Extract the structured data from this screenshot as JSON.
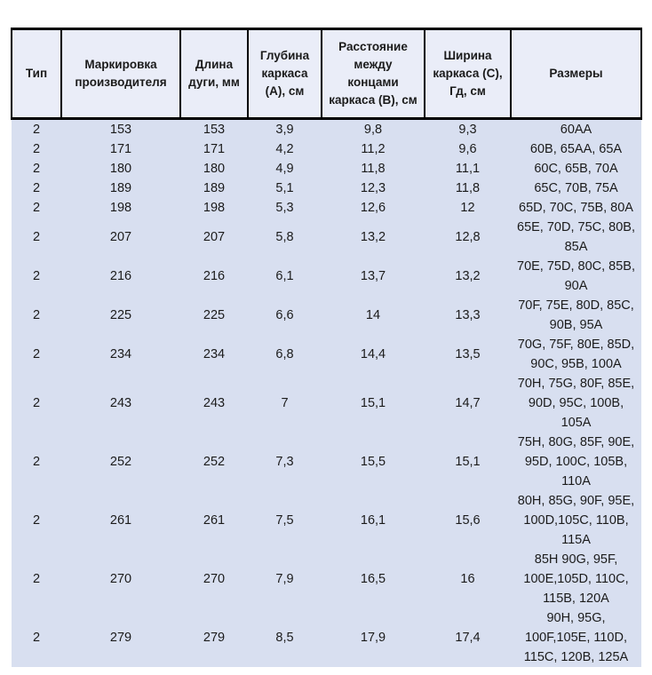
{
  "page": {
    "background_color": "#ffffff",
    "text_color": "#1b1b1b"
  },
  "table": {
    "header_bg_color": "#eaedf8",
    "body_bg_color": "#d8dff0",
    "border_color": "#000000",
    "headers": [
      "Тип",
      "Маркировка\nпроизводителя",
      "Длина\nдуги, мм",
      "Глубина\nкаркаса\n(А), см",
      "Расстояние\nмежду\nконцами\nкаркаса (В), см",
      "Ширина\nкаркаса (С),\nГд, см",
      "Размеры"
    ],
    "rows": [
      [
        "2",
        "153",
        "153",
        "3,9",
        "9,8",
        "9,3",
        "60АА"
      ],
      [
        "2",
        "171",
        "171",
        "4,2",
        "11,2",
        "9,6",
        "60B, 65AA, 65A"
      ],
      [
        "2",
        "180",
        "180",
        "4,9",
        "11,8",
        "11,1",
        "60C, 65B, 70A"
      ],
      [
        "2",
        "189",
        "189",
        "5,1",
        "12,3",
        "11,8",
        "65C, 70B, 75A"
      ],
      [
        "2",
        "198",
        "198",
        "5,3",
        "12,6",
        "12",
        "65D, 70C, 75B, 80A"
      ],
      [
        "2",
        "207",
        "207",
        "5,8",
        "13,2",
        "12,8",
        "65E, 70D, 75C, 80B,\n85A"
      ],
      [
        "2",
        "216",
        "216",
        "6,1",
        "13,7",
        "13,2",
        "70E, 75D, 80C, 85B,\n90A"
      ],
      [
        "2",
        "225",
        "225",
        "6,6",
        "14",
        "13,3",
        "70F, 75E, 80D, 85C,\n90B, 95A"
      ],
      [
        "2",
        "234",
        "234",
        "6,8",
        "14,4",
        "13,5",
        "70G, 75F, 80E, 85D,\n90C, 95B, 100A"
      ],
      [
        "2",
        "243",
        "243",
        "7",
        "15,1",
        "14,7",
        "70H, 75G, 80F, 85E,\n90D, 95C, 100B,\n105A"
      ],
      [
        "2",
        "252",
        "252",
        "7,3",
        "15,5",
        "15,1",
        "75H, 80G, 85F, 90E,\n95D, 100C, 105B,\n110A"
      ],
      [
        "2",
        "261",
        "261",
        "7,5",
        "16,1",
        "15,6",
        "80H, 85G, 90F, 95E,\n100D,105C, 110B,\n115A"
      ],
      [
        "2",
        "270",
        "270",
        "7,9",
        "16,5",
        "16",
        "85H 90G, 95F,\n100E,105D, 110C,\n115B, 120A"
      ],
      [
        "2",
        "279",
        "279",
        "8,5",
        "17,9",
        "17,4",
        "90H, 95G,\n100F,105E, 110D,\n115C, 120B, 125A"
      ]
    ]
  }
}
